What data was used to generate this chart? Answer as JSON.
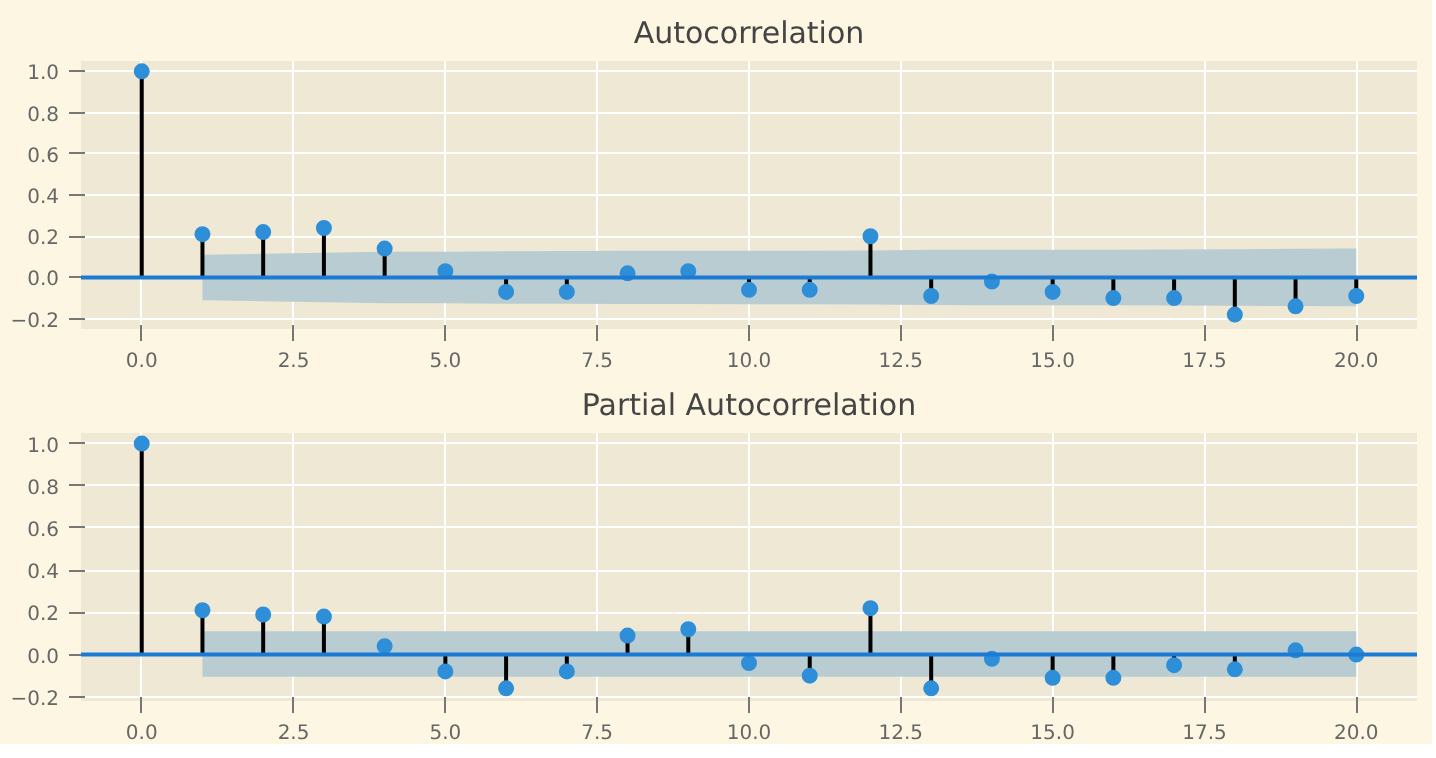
{
  "chart_data": [
    {
      "type": "lollipop",
      "title": "Autocorrelation",
      "x": [
        0,
        1,
        2,
        3,
        4,
        5,
        6,
        7,
        8,
        9,
        10,
        11,
        12,
        13,
        14,
        15,
        16,
        17,
        18,
        19,
        20
      ],
      "xlim": [
        -1,
        21
      ],
      "ylim": [
        -0.25,
        1.05
      ],
      "xticks": [
        {
          "value": 0,
          "label": "0.0"
        },
        {
          "value": 2.5,
          "label": "2.5"
        },
        {
          "value": 5,
          "label": "5.0"
        },
        {
          "value": 7.5,
          "label": "7.5"
        },
        {
          "value": 10,
          "label": "10.0"
        },
        {
          "value": 12.5,
          "label": "12.5"
        },
        {
          "value": 15,
          "label": "15.0"
        },
        {
          "value": 17.5,
          "label": "17.5"
        },
        {
          "value": 20,
          "label": "20.0"
        }
      ],
      "yticks": [
        {
          "value": -0.2,
          "label": "−0.2"
        },
        {
          "value": 0,
          "label": "0.0"
        },
        {
          "value": 0.2,
          "label": "0.2"
        },
        {
          "value": 0.4,
          "label": "0.4"
        },
        {
          "value": 0.6,
          "label": "0.6"
        },
        {
          "value": 0.8,
          "label": "0.8"
        },
        {
          "value": 1,
          "label": "1.0"
        }
      ],
      "grid": true,
      "marker": "circle",
      "series": [
        {
          "color": "#2e8fd8",
          "values": [
            1.0,
            0.21,
            0.22,
            0.24,
            0.14,
            0.03,
            -0.07,
            -0.07,
            0.02,
            0.03,
            -0.06,
            -0.06,
            0.2,
            -0.09,
            -0.02,
            -0.07,
            -0.1,
            -0.1,
            -0.18,
            -0.14,
            -0.09
          ],
          "lower": [
            null,
            -0.11,
            -0.115,
            -0.12,
            -0.125,
            -0.125,
            -0.127,
            -0.128,
            -0.129,
            -0.129,
            -0.13,
            -0.13,
            -0.131,
            -0.134,
            -0.135,
            -0.135,
            -0.135,
            -0.136,
            -0.137,
            -0.139,
            -0.14
          ],
          "upper": [
            null,
            0.11,
            0.115,
            0.12,
            0.125,
            0.125,
            0.127,
            0.128,
            0.129,
            0.129,
            0.13,
            0.13,
            0.131,
            0.134,
            0.135,
            0.135,
            0.135,
            0.136,
            0.137,
            0.139,
            0.14
          ]
        }
      ],
      "ref_lines": [
        {
          "axis": "y",
          "value": 0,
          "color": "#1a7ad4"
        }
      ]
    },
    {
      "type": "lollipop",
      "title": "Partial Autocorrelation",
      "x": [
        0,
        1,
        2,
        3,
        4,
        5,
        6,
        7,
        8,
        9,
        10,
        11,
        12,
        13,
        14,
        15,
        16,
        17,
        18,
        19,
        20
      ],
      "xlim": [
        -1,
        21
      ],
      "ylim": [
        -0.22,
        1.05
      ],
      "xticks": [
        {
          "value": 0,
          "label": "0.0"
        },
        {
          "value": 2.5,
          "label": "2.5"
        },
        {
          "value": 5,
          "label": "5.0"
        },
        {
          "value": 7.5,
          "label": "7.5"
        },
        {
          "value": 10,
          "label": "10.0"
        },
        {
          "value": 12.5,
          "label": "12.5"
        },
        {
          "value": 15,
          "label": "15.0"
        },
        {
          "value": 17.5,
          "label": "17.5"
        },
        {
          "value": 20,
          "label": "20.0"
        }
      ],
      "yticks": [
        {
          "value": -0.2,
          "label": "−0.2"
        },
        {
          "value": 0,
          "label": "0.0"
        },
        {
          "value": 0.2,
          "label": "0.2"
        },
        {
          "value": 0.4,
          "label": "0.4"
        },
        {
          "value": 0.6,
          "label": "0.6"
        },
        {
          "value": 0.8,
          "label": "0.8"
        },
        {
          "value": 1,
          "label": "1.0"
        }
      ],
      "grid": true,
      "marker": "circle",
      "series": [
        {
          "color": "#2e8fd8",
          "values": [
            1.0,
            0.21,
            0.19,
            0.18,
            0.04,
            -0.08,
            -0.16,
            -0.08,
            0.09,
            0.12,
            -0.04,
            -0.1,
            0.22,
            -0.16,
            -0.02,
            -0.11,
            -0.11,
            -0.05,
            -0.07,
            0.02,
            0.0
          ],
          "lower": [
            null,
            -0.105,
            -0.105,
            -0.105,
            -0.105,
            -0.105,
            -0.105,
            -0.105,
            -0.105,
            -0.105,
            -0.105,
            -0.105,
            -0.105,
            -0.105,
            -0.105,
            -0.105,
            -0.105,
            -0.105,
            -0.105,
            -0.105,
            -0.105
          ],
          "upper": [
            null,
            0.11,
            0.11,
            0.11,
            0.11,
            0.11,
            0.11,
            0.11,
            0.11,
            0.11,
            0.11,
            0.11,
            0.11,
            0.11,
            0.11,
            0.11,
            0.11,
            0.11,
            0.11,
            0.11,
            0.11
          ]
        }
      ],
      "ref_lines": [
        {
          "axis": "y",
          "value": 0,
          "color": "#1a7ad4"
        }
      ]
    }
  ]
}
